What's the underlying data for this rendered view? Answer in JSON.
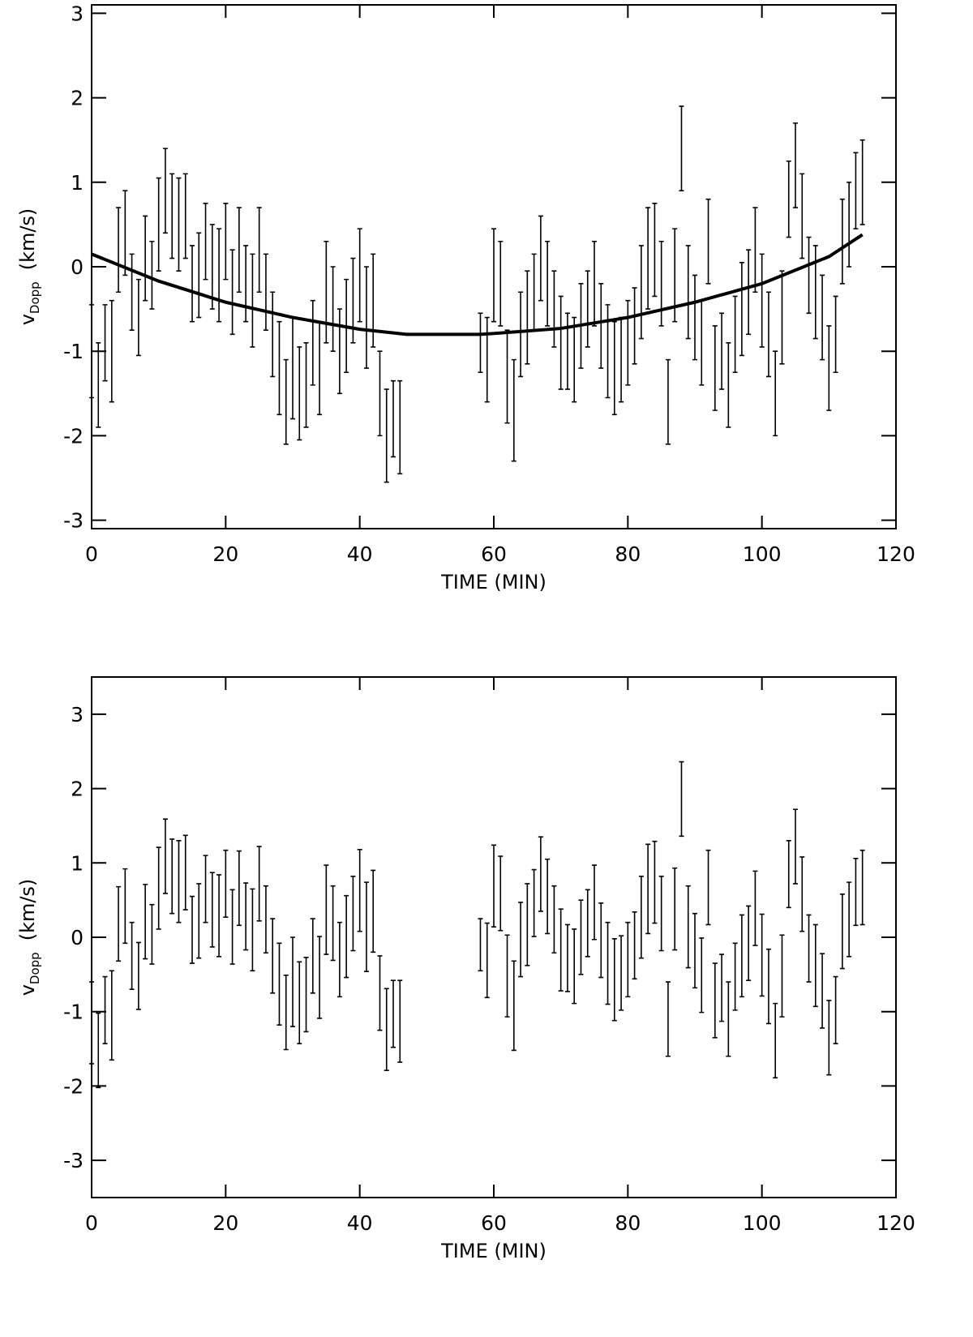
{
  "chart_data": [
    {
      "type": "errorbar",
      "xlabel": "TIME (MIN)",
      "ylabel": {
        "main": "v",
        "sub": "Dopp",
        "unit": "(km/s)"
      },
      "xlim": [
        0,
        120
      ],
      "xticks": [
        0,
        20,
        40,
        60,
        80,
        100,
        120
      ],
      "ylim": [
        -3.1,
        3.1
      ],
      "yticks": [
        -3,
        -2,
        -1,
        0,
        1,
        2,
        3
      ],
      "color": "#000000",
      "x": [
        0,
        1,
        2,
        3,
        4,
        5,
        6,
        7,
        8,
        9,
        10,
        11,
        12,
        13,
        14,
        15,
        16,
        17,
        18,
        19,
        20,
        21,
        22,
        23,
        24,
        25,
        26,
        27,
        28,
        29,
        30,
        31,
        32,
        33,
        34,
        35,
        36,
        37,
        38,
        39,
        40,
        41,
        42,
        43,
        44,
        45,
        46,
        58,
        59,
        60,
        61,
        62,
        63,
        64,
        65,
        66,
        67,
        68,
        69,
        70,
        71,
        72,
        73,
        74,
        75,
        76,
        77,
        78,
        79,
        80,
        81,
        82,
        83,
        84,
        85,
        86,
        87,
        88,
        89,
        90,
        91,
        92,
        93,
        94,
        95,
        96,
        97,
        98,
        99,
        100,
        101,
        102,
        103,
        104,
        105,
        106,
        107,
        108,
        109,
        110,
        111,
        112,
        113,
        114,
        115
      ],
      "values": [
        -1.0,
        -1.4,
        -0.9,
        -1.0,
        0.2,
        0.4,
        -0.3,
        -0.6,
        0.1,
        -0.1,
        0.5,
        0.9,
        0.6,
        0.5,
        0.6,
        -0.2,
        -0.1,
        0.3,
        0.0,
        -0.1,
        0.3,
        -0.3,
        0.2,
        -0.2,
        -0.4,
        0.2,
        -0.3,
        -0.8,
        -1.2,
        -1.6,
        -1.2,
        -1.5,
        -1.4,
        -0.9,
        -1.2,
        -0.3,
        -0.5,
        -1.0,
        -0.7,
        -0.4,
        -0.1,
        -0.6,
        -0.4,
        -1.5,
        -2.0,
        -1.8,
        -1.9,
        -0.9,
        -1.1,
        -0.1,
        -0.2,
        -1.3,
        -1.7,
        -0.8,
        -0.6,
        -0.3,
        0.1,
        -0.2,
        -0.5,
        -0.9,
        -1.0,
        -1.1,
        -0.7,
        -0.5,
        -0.2,
        -0.7,
        -1.0,
        -1.2,
        -1.1,
        -0.9,
        -0.7,
        -0.3,
        0.1,
        0.2,
        -0.2,
        -1.6,
        -0.1,
        1.4,
        -0.3,
        -0.6,
        -0.9,
        0.3,
        -1.2,
        -1.0,
        -1.4,
        -0.8,
        -0.5,
        -0.3,
        0.2,
        -0.4,
        -0.8,
        -1.5,
        -0.6,
        0.8,
        1.2,
        0.6,
        -0.1,
        -0.3,
        -0.6,
        -1.2,
        -0.8,
        0.3,
        0.5,
        0.9,
        1.0
      ],
      "errors": [
        0.55,
        0.5,
        0.45,
        0.6,
        0.5,
        0.5,
        0.45,
        0.45,
        0.5,
        0.4,
        0.55,
        0.5,
        0.5,
        0.55,
        0.5,
        0.45,
        0.5,
        0.45,
        0.5,
        0.55,
        0.45,
        0.5,
        0.5,
        0.45,
        0.55,
        0.5,
        0.45,
        0.5,
        0.55,
        0.5,
        0.6,
        0.55,
        0.5,
        0.5,
        0.55,
        0.6,
        0.5,
        0.5,
        0.55,
        0.5,
        0.55,
        0.6,
        0.55,
        0.5,
        0.55,
        0.45,
        0.55,
        0.35,
        0.5,
        0.55,
        0.5,
        0.55,
        0.6,
        0.5,
        0.55,
        0.45,
        0.5,
        0.5,
        0.45,
        0.55,
        0.45,
        0.5,
        0.5,
        0.45,
        0.5,
        0.5,
        0.55,
        0.55,
        0.5,
        0.5,
        0.45,
        0.55,
        0.6,
        0.55,
        0.5,
        0.5,
        0.55,
        0.5,
        0.55,
        0.5,
        0.5,
        0.5,
        0.5,
        0.45,
        0.5,
        0.45,
        0.55,
        0.5,
        0.5,
        0.55,
        0.5,
        0.5,
        0.55,
        0.45,
        0.5,
        0.5,
        0.45,
        0.55,
        0.5,
        0.5,
        0.45,
        0.5,
        0.5,
        0.45,
        0.5
      ],
      "fit": {
        "x": [
          0,
          10,
          20,
          30,
          40,
          47,
          58,
          60,
          70,
          80,
          90,
          100,
          110,
          115
        ],
        "values": [
          0.15,
          -0.17,
          -0.42,
          -0.6,
          -0.74,
          -0.8,
          -0.8,
          -0.79,
          -0.73,
          -0.6,
          -0.42,
          -0.2,
          0.12,
          0.38
        ]
      }
    },
    {
      "type": "errorbar",
      "xlabel": "TIME (MIN)",
      "ylabel": {
        "main": "v",
        "sub": "Dopp",
        "unit": "(km/s)"
      },
      "xlim": [
        0,
        120
      ],
      "xticks": [
        0,
        20,
        40,
        60,
        80,
        100,
        120
      ],
      "ylim": [
        -3.5,
        3.5
      ],
      "yticks": [
        -3,
        -2,
        -1,
        0,
        1,
        2,
        3
      ],
      "color": "#000000",
      "x": [
        0,
        1,
        2,
        3,
        4,
        5,
        6,
        7,
        8,
        9,
        10,
        11,
        12,
        13,
        14,
        15,
        16,
        17,
        18,
        19,
        20,
        21,
        22,
        23,
        24,
        25,
        26,
        27,
        28,
        29,
        30,
        31,
        32,
        33,
        34,
        35,
        36,
        37,
        38,
        39,
        40,
        41,
        42,
        43,
        44,
        45,
        46,
        58,
        59,
        60,
        61,
        62,
        63,
        64,
        65,
        66,
        67,
        68,
        69,
        70,
        71,
        72,
        73,
        74,
        75,
        76,
        77,
        78,
        79,
        80,
        81,
        82,
        83,
        84,
        85,
        86,
        87,
        88,
        89,
        90,
        91,
        92,
        93,
        94,
        95,
        96,
        97,
        98,
        99,
        100,
        101,
        102,
        103,
        104,
        105,
        106,
        107,
        108,
        109,
        110,
        111,
        112,
        113,
        114,
        115
      ],
      "values": [
        -1.15,
        -1.52,
        -0.98,
        -1.05,
        0.18,
        0.42,
        -0.25,
        -0.52,
        0.21,
        0.04,
        0.66,
        1.09,
        0.82,
        0.75,
        0.87,
        0.1,
        0.22,
        0.65,
        0.37,
        0.29,
        0.72,
        0.14,
        0.66,
        0.28,
        0.1,
        0.72,
        0.24,
        -0.25,
        -0.63,
        -1.01,
        -0.6,
        -0.88,
        -0.77,
        -0.25,
        -0.54,
        0.37,
        0.19,
        -0.3,
        0.01,
        0.32,
        0.63,
        0.14,
        0.35,
        -0.75,
        -1.24,
        -1.03,
        -1.13,
        -0.1,
        -0.31,
        0.69,
        0.59,
        -0.52,
        -0.92,
        -0.03,
        0.17,
        0.46,
        0.85,
        0.55,
        0.24,
        -0.17,
        -0.28,
        -0.39,
        0.0,
        0.19,
        0.47,
        -0.04,
        -0.35,
        -0.57,
        -0.48,
        -0.3,
        -0.11,
        0.27,
        0.65,
        0.74,
        0.32,
        -1.1,
        0.38,
        1.86,
        0.14,
        -0.18,
        -0.51,
        0.67,
        -0.85,
        -0.68,
        -1.1,
        -0.53,
        -0.25,
        -0.08,
        0.39,
        -0.24,
        -0.66,
        -1.39,
        -0.52,
        0.85,
        1.22,
        0.58,
        -0.15,
        -0.38,
        -0.72,
        -1.35,
        -0.98,
        0.08,
        0.24,
        0.61,
        0.67
      ],
      "errors": [
        0.55,
        0.5,
        0.45,
        0.6,
        0.5,
        0.5,
        0.45,
        0.45,
        0.5,
        0.4,
        0.55,
        0.5,
        0.5,
        0.55,
        0.5,
        0.45,
        0.5,
        0.45,
        0.5,
        0.55,
        0.45,
        0.5,
        0.5,
        0.45,
        0.55,
        0.5,
        0.45,
        0.5,
        0.55,
        0.5,
        0.6,
        0.55,
        0.5,
        0.5,
        0.55,
        0.6,
        0.5,
        0.5,
        0.55,
        0.5,
        0.55,
        0.6,
        0.55,
        0.5,
        0.55,
        0.45,
        0.55,
        0.35,
        0.5,
        0.55,
        0.5,
        0.55,
        0.6,
        0.5,
        0.55,
        0.45,
        0.5,
        0.5,
        0.45,
        0.55,
        0.45,
        0.5,
        0.5,
        0.45,
        0.5,
        0.5,
        0.55,
        0.55,
        0.5,
        0.5,
        0.45,
        0.55,
        0.6,
        0.55,
        0.5,
        0.5,
        0.55,
        0.5,
        0.55,
        0.5,
        0.5,
        0.5,
        0.5,
        0.45,
        0.5,
        0.45,
        0.55,
        0.5,
        0.5,
        0.55,
        0.5,
        0.5,
        0.55,
        0.45,
        0.5,
        0.5,
        0.45,
        0.55,
        0.5,
        0.5,
        0.45,
        0.5,
        0.5,
        0.45,
        0.5
      ]
    }
  ]
}
